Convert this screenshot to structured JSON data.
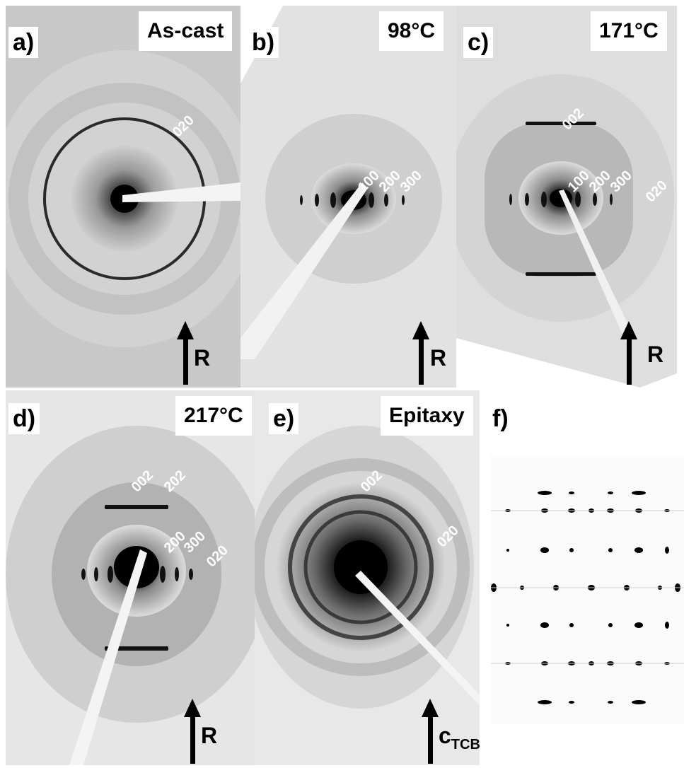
{
  "panels": {
    "a": {
      "letter": "a)",
      "condition": "As-cast",
      "reflections": [
        "020"
      ],
      "direction": "R"
    },
    "b": {
      "letter": "b)",
      "condition": "98°C",
      "reflections": [
        "100",
        "200",
        "300"
      ],
      "direction": "R"
    },
    "c": {
      "letter": "c)",
      "condition": "171°C",
      "reflections": [
        "002",
        "100",
        "200",
        "300",
        "020"
      ],
      "direction": "R"
    },
    "d": {
      "letter": "d)",
      "condition": "217°C",
      "reflections": [
        "002",
        "202",
        "200",
        "300",
        "020"
      ],
      "direction": "R"
    },
    "e": {
      "letter": "e)",
      "condition": "Epitaxy",
      "reflections": [
        "002",
        "020"
      ],
      "direction_main": "c",
      "direction_sub": "TCB"
    },
    "f": {
      "letter": "f)"
    }
  },
  "colors": {
    "pattern_dark": "#0a0a0a",
    "beamstop": "#ffffff",
    "background": "#ffffff"
  }
}
